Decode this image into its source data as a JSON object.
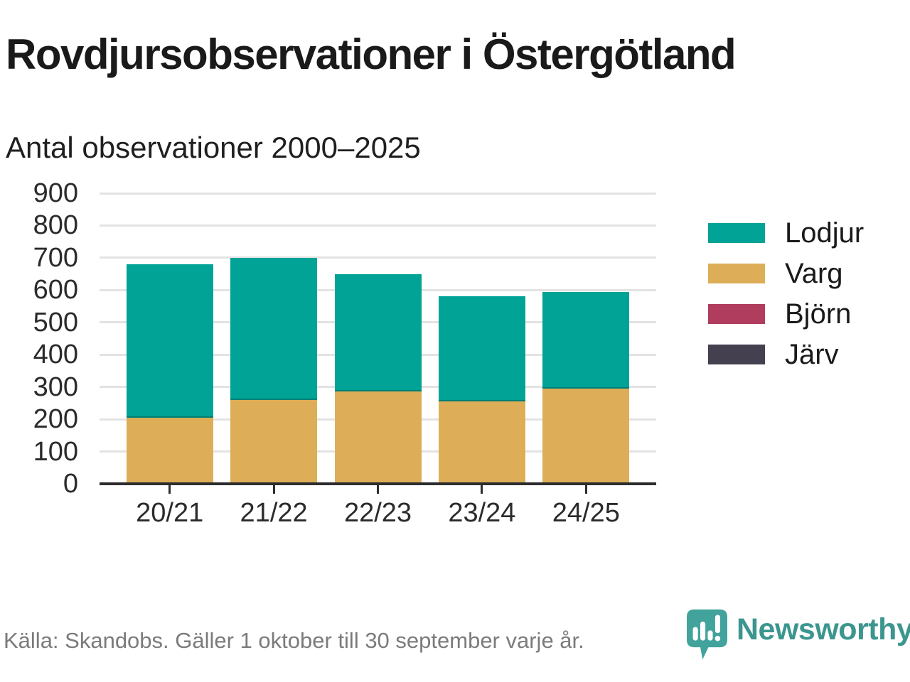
{
  "header": {
    "title": "Rovdjursobservationer i Östergötland",
    "subtitle": "Antal observationer 2000–2025"
  },
  "footer": {
    "source": "Källa: Skandobs. Gäller 1 oktober till 30 september varje år."
  },
  "branding": {
    "name": "Newsworthy",
    "color": "#3c968f",
    "icon": "bar-chart-speech-bubble-icon"
  },
  "chart_data": {
    "type": "bar",
    "stacked": true,
    "title": "Rovdjursobservationer i Östergötland",
    "subtitle": "Antal observationer 2000–2025",
    "categories": [
      "20/21",
      "21/22",
      "22/23",
      "23/24",
      "24/25"
    ],
    "series": [
      {
        "name": "Lodjur",
        "color": "#00A396",
        "values": [
          475,
          440,
          365,
          325,
          300
        ]
      },
      {
        "name": "Varg",
        "color": "#DDAE57",
        "values": [
          205,
          260,
          285,
          255,
          295
        ]
      },
      {
        "name": "Björn",
        "color": "#B13D5E",
        "values": [
          0,
          0,
          0,
          0,
          0
        ]
      },
      {
        "name": "Järv",
        "color": "#444050",
        "values": [
          0,
          0,
          0,
          0,
          0
        ]
      }
    ],
    "stack_totals": [
      680,
      700,
      650,
      580,
      595
    ],
    "xlabel": "",
    "ylabel": "",
    "ylim": [
      0,
      900
    ],
    "yticks": [
      0,
      100,
      200,
      300,
      400,
      500,
      600,
      700,
      800,
      900
    ],
    "grid": true,
    "legend_position": "right",
    "axis_color": "#2e2e2e",
    "gridline_color": "#e3e3e3"
  }
}
